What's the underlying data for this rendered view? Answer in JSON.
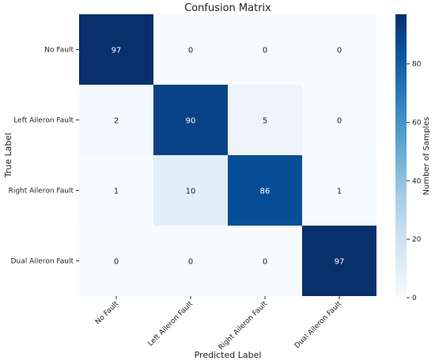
{
  "chart_data": {
    "type": "heatmap",
    "title": "Confusion Matrix",
    "xlabel": "Predicted Label",
    "ylabel": "True Label",
    "x_categories": [
      "No Fault",
      "Left Aileron Fault",
      "Right Aileron Fault",
      "Dual Aileron Fault"
    ],
    "y_categories": [
      "No Fault",
      "Left Aileron Fault",
      "Right Aileron Fault",
      "Dual Aileron Fault"
    ],
    "values": [
      [
        97,
        0,
        0,
        0
      ],
      [
        2,
        90,
        5,
        0
      ],
      [
        1,
        10,
        86,
        1
      ],
      [
        0,
        0,
        0,
        97
      ]
    ],
    "colorbar": {
      "label": "Number of Samples",
      "range": [
        0,
        97
      ],
      "ticks": [
        0,
        20,
        40,
        60,
        80
      ],
      "colormap": "Blues",
      "low_color": "#f7fbff",
      "high_color": "#08306b"
    },
    "grid": false
  }
}
